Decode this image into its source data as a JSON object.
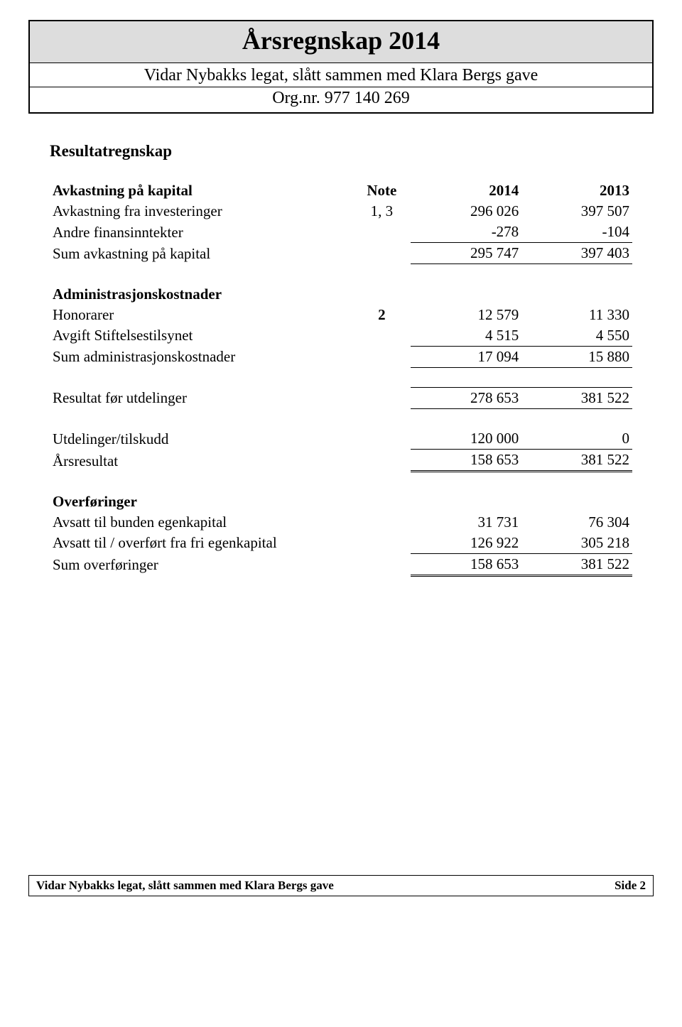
{
  "colors": {
    "title_bg": "#dddddd",
    "border": "#000000",
    "text": "#000000",
    "page_bg": "#ffffff"
  },
  "typography": {
    "family": "Times New Roman",
    "title_size_pt": 27,
    "subtitle_size_pt": 18,
    "body_size_pt": 16
  },
  "header": {
    "title": "Årsregnskap 2014",
    "subtitle": "Vidar Nybakks legat, slått sammen med Klara Bergs gave",
    "orgnr": "Org.nr. 977 140 269"
  },
  "section_title": "Resultatregnskap",
  "columns": {
    "note": "Note",
    "year_a": "2014",
    "year_b": "2013"
  },
  "groups": [
    {
      "heading": "Avkastning på kapital",
      "rows": [
        {
          "label": "Avkastning fra investeringer",
          "note": "1, 3",
          "a": "296 026",
          "b": "397 507"
        },
        {
          "label": "Andre finansinntekter",
          "note": "",
          "a": "-278",
          "b": "-104"
        }
      ],
      "total": {
        "label": "Sum avkastning på kapital",
        "a": "295 747",
        "b": "397 403"
      }
    },
    {
      "heading": "Administrasjonskostnader",
      "rows": [
        {
          "label": "Honorarer",
          "note": "2",
          "a": "12 579",
          "b": "11 330"
        },
        {
          "label": "Avgift Stiftelsestilsynet",
          "note": "",
          "a": "4 515",
          "b": "4 550"
        }
      ],
      "total": {
        "label": "Sum administrasjonskostnader",
        "a": "17 094",
        "b": "15 880"
      }
    }
  ],
  "result_before": {
    "label": "Resultat før utdelinger",
    "a": "278 653",
    "b": "381 522"
  },
  "distributions": {
    "row": {
      "label": "Utdelinger/tilskudd",
      "a": "120 000",
      "b": "0"
    },
    "total": {
      "label": "Årsresultat",
      "a": "158 653",
      "b": "381 522"
    }
  },
  "transfers": {
    "heading": "Overføringer",
    "rows": [
      {
        "label": "Avsatt til bunden egenkapital",
        "a": "31 731",
        "b": "76 304"
      },
      {
        "label": "Avsatt til / overført fra fri egenkapital",
        "a": "126 922",
        "b": "305 218"
      }
    ],
    "total": {
      "label": "Sum overføringer",
      "a": "158 653",
      "b": "381 522"
    }
  },
  "footer": {
    "left": "Vidar Nybakks legat, slått sammen med Klara Bergs gave",
    "right": "Side 2"
  }
}
